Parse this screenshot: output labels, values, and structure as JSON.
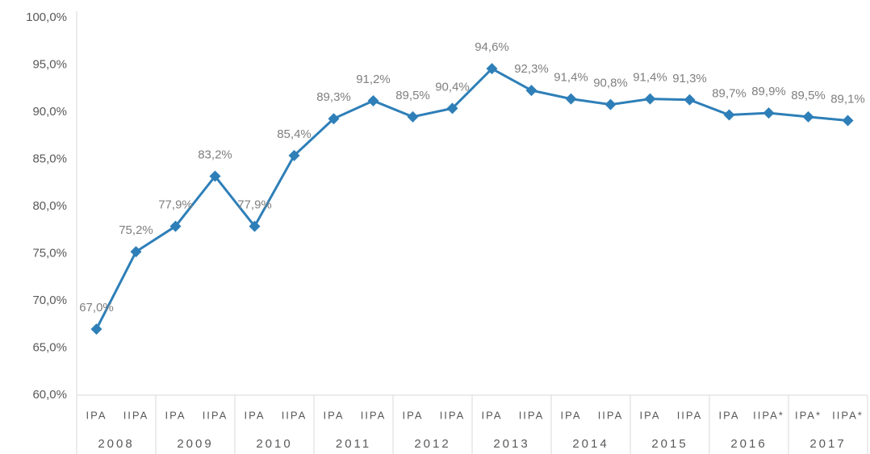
{
  "chart_data": {
    "type": "line",
    "categories": [
      "IPA",
      "IIPA",
      "IPA",
      "IIPA",
      "IPA",
      "IIPA",
      "IPA",
      "IIPA",
      "IPA",
      "IIPA",
      "IPA",
      "IIPA",
      "IPA",
      "IIPA",
      "IPA",
      "IIPA",
      "IPA",
      "IIPA*",
      "IPA*",
      "IIPA*"
    ],
    "groups": [
      "2008",
      "2009",
      "2010",
      "2011",
      "2012",
      "2013",
      "2014",
      "2015",
      "2016",
      "2017"
    ],
    "series": [
      {
        "color": "#2e7fb8",
        "values": [
          67.0,
          75.2,
          77.9,
          83.2,
          77.9,
          85.4,
          89.3,
          91.2,
          89.5,
          90.4,
          94.6,
          92.3,
          91.4,
          90.8,
          91.4,
          91.3,
          89.7,
          89.9,
          89.5,
          89.1
        ],
        "value_labels": [
          "67,0%",
          "75,2%",
          "77,9%",
          "83,2%",
          "77,9%",
          "85,4%",
          "89,3%",
          "91,2%",
          "89,5%",
          "90,4%",
          "94,6%",
          "92,3%",
          "91,4%",
          "90,8%",
          "91,4%",
          "91,3%",
          "89,7%",
          "89,9%",
          "89,5%",
          "89,1%"
        ]
      }
    ],
    "ylim": [
      60,
      100
    ],
    "yticks": [
      {
        "value": 60,
        "label": "60,0%"
      },
      {
        "value": 65,
        "label": "65,0%"
      },
      {
        "value": 70,
        "label": "70,0%"
      },
      {
        "value": 75,
        "label": "75,0%"
      },
      {
        "value": 80,
        "label": "80,0%"
      },
      {
        "value": 85,
        "label": "85,0%"
      },
      {
        "value": 90,
        "label": "90,0%"
      },
      {
        "value": 95,
        "label": "95,0%"
      },
      {
        "value": 100,
        "label": "100,0%"
      }
    ],
    "grid": false
  }
}
